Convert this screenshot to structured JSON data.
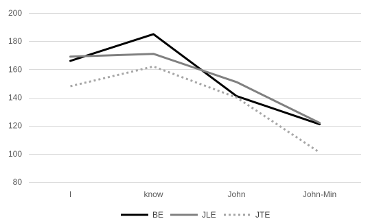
{
  "chart_data": {
    "type": "line",
    "categories": [
      "I",
      "know",
      "John",
      "John-Min"
    ],
    "ylim": [
      80,
      200
    ],
    "yticks": [
      80,
      100,
      120,
      140,
      160,
      180,
      200
    ],
    "grid": true,
    "legend_position": "bottom",
    "series": [
      {
        "name": "BE",
        "values": [
          166,
          185,
          141,
          121
        ],
        "color": "#000000",
        "style": "solid"
      },
      {
        "name": "JLE",
        "values": [
          169,
          171,
          151,
          122
        ],
        "color": "#808080",
        "style": "solid"
      },
      {
        "name": "JTE",
        "values": [
          148,
          162,
          140,
          101
        ],
        "color": "#a6a6a6",
        "style": "dotted"
      }
    ]
  }
}
